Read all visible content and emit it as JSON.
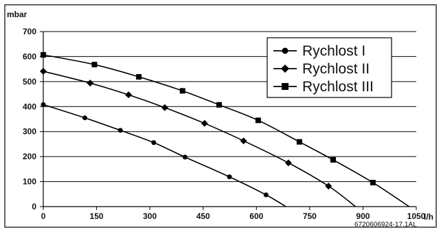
{
  "chart_data": {
    "type": "line",
    "title": "",
    "ylabel": "mbar",
    "xlabel": "l/h",
    "xlim": [
      0,
      1050
    ],
    "ylim": [
      0,
      700
    ],
    "x_ticks": [
      0,
      150,
      300,
      450,
      600,
      750,
      900,
      1050
    ],
    "y_ticks": [
      0,
      100,
      200,
      300,
      400,
      500,
      600,
      700
    ],
    "grid": "horizontal",
    "legend_position": "top-right",
    "series": [
      {
        "name": "Rychlost I",
        "marker": "circle",
        "color": "#000000",
        "points": [
          [
            0,
            408
          ],
          [
            117,
            355
          ],
          [
            217,
            305
          ],
          [
            311,
            256
          ],
          [
            399,
            198
          ],
          [
            524,
            119
          ],
          [
            627,
            47
          ],
          [
            683,
            0
          ]
        ]
      },
      {
        "name": "Rychlost II",
        "marker": "diamond",
        "color": "#000000",
        "points": [
          [
            0,
            541
          ],
          [
            132,
            494
          ],
          [
            240,
            447
          ],
          [
            342,
            396
          ],
          [
            454,
            333
          ],
          [
            564,
            263
          ],
          [
            690,
            175
          ],
          [
            803,
            82
          ],
          [
            879,
            0
          ]
        ]
      },
      {
        "name": "Rychlost III",
        "marker": "square",
        "color": "#000000",
        "points": [
          [
            0,
            607
          ],
          [
            144,
            568
          ],
          [
            269,
            519
          ],
          [
            392,
            463
          ],
          [
            495,
            407
          ],
          [
            605,
            345
          ],
          [
            721,
            259
          ],
          [
            816,
            187
          ],
          [
            928,
            96
          ],
          [
            1030,
            0
          ]
        ]
      }
    ],
    "annotation": "6720606924-17.1AL"
  }
}
